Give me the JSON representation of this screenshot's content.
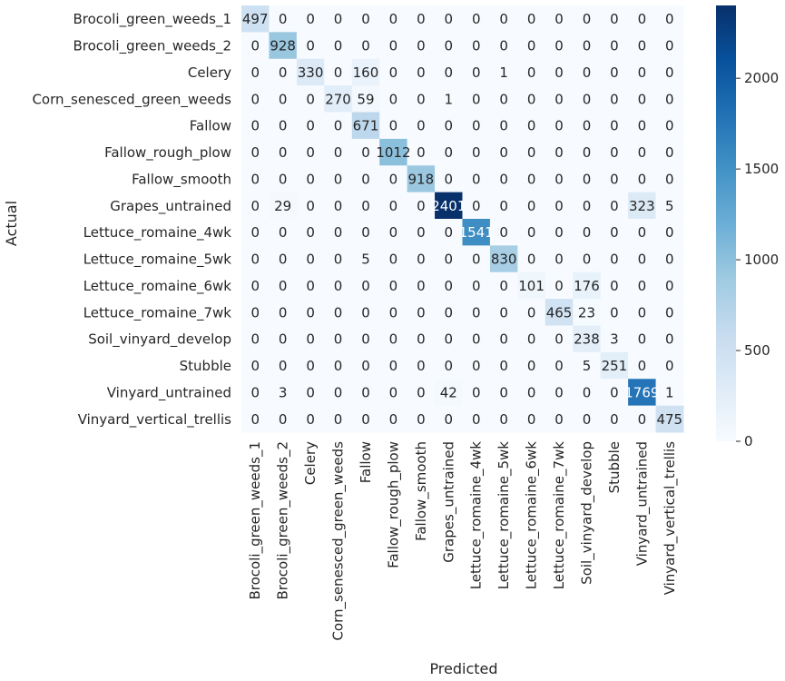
{
  "chart_data": {
    "type": "heatmap",
    "title": "",
    "xlabel": "Predicted",
    "ylabel": "Actual",
    "categories": [
      "Brocoli_green_weeds_1",
      "Brocoli_green_weeds_2",
      "Celery",
      "Corn_senesced_green_weeds",
      "Fallow",
      "Fallow_rough_plow",
      "Fallow_smooth",
      "Grapes_untrained",
      "Lettuce_romaine_4wk",
      "Lettuce_romaine_5wk",
      "Lettuce_romaine_6wk",
      "Lettuce_romaine_7wk",
      "Soil_vinyard_develop",
      "Stubble",
      "Vinyard_untrained",
      "Vinyard_vertical_trellis"
    ],
    "matrix": [
      [
        497,
        0,
        0,
        0,
        0,
        0,
        0,
        0,
        0,
        0,
        0,
        0,
        0,
        0,
        0,
        0
      ],
      [
        0,
        928,
        0,
        0,
        0,
        0,
        0,
        0,
        0,
        0,
        0,
        0,
        0,
        0,
        0,
        0
      ],
      [
        0,
        0,
        330,
        0,
        160,
        0,
        0,
        0,
        0,
        1,
        0,
        0,
        0,
        0,
        0,
        0
      ],
      [
        0,
        0,
        0,
        270,
        59,
        0,
        0,
        1,
        0,
        0,
        0,
        0,
        0,
        0,
        0,
        0
      ],
      [
        0,
        0,
        0,
        0,
        671,
        0,
        0,
        0,
        0,
        0,
        0,
        0,
        0,
        0,
        0,
        0
      ],
      [
        0,
        0,
        0,
        0,
        0,
        1012,
        0,
        0,
        0,
        0,
        0,
        0,
        0,
        0,
        0,
        0
      ],
      [
        0,
        0,
        0,
        0,
        0,
        0,
        918,
        0,
        0,
        0,
        0,
        0,
        0,
        0,
        0,
        0
      ],
      [
        0,
        29,
        0,
        0,
        0,
        0,
        0,
        2401,
        0,
        0,
        0,
        0,
        0,
        0,
        323,
        5
      ],
      [
        0,
        0,
        0,
        0,
        0,
        0,
        0,
        0,
        1541,
        0,
        0,
        0,
        0,
        0,
        0,
        0
      ],
      [
        0,
        0,
        0,
        0,
        5,
        0,
        0,
        0,
        0,
        830,
        0,
        0,
        0,
        0,
        0,
        0
      ],
      [
        0,
        0,
        0,
        0,
        0,
        0,
        0,
        0,
        0,
        0,
        101,
        0,
        176,
        0,
        0,
        0
      ],
      [
        0,
        0,
        0,
        0,
        0,
        0,
        0,
        0,
        0,
        0,
        0,
        465,
        23,
        0,
        0,
        0
      ],
      [
        0,
        0,
        0,
        0,
        0,
        0,
        0,
        0,
        0,
        0,
        0,
        0,
        238,
        3,
        0,
        0
      ],
      [
        0,
        0,
        0,
        0,
        0,
        0,
        0,
        0,
        0,
        0,
        0,
        0,
        5,
        251,
        0,
        0
      ],
      [
        0,
        3,
        0,
        0,
        0,
        0,
        0,
        42,
        0,
        0,
        0,
        0,
        0,
        0,
        1769,
        1
      ],
      [
        0,
        0,
        0,
        0,
        0,
        0,
        0,
        0,
        0,
        0,
        0,
        0,
        0,
        0,
        0,
        475
      ]
    ],
    "colorbar": {
      "range": [
        0,
        2401
      ],
      "ticks": [
        0,
        500,
        1000,
        1500,
        2000
      ],
      "tick_labels": [
        "0",
        "500",
        "1000",
        "1500",
        "2000"
      ]
    },
    "colormap": "Blues",
    "colors": {
      "low": "#f7fbff",
      "high": "#08306b",
      "text_dark": "#262626",
      "text_light": "#ffffff"
    }
  }
}
